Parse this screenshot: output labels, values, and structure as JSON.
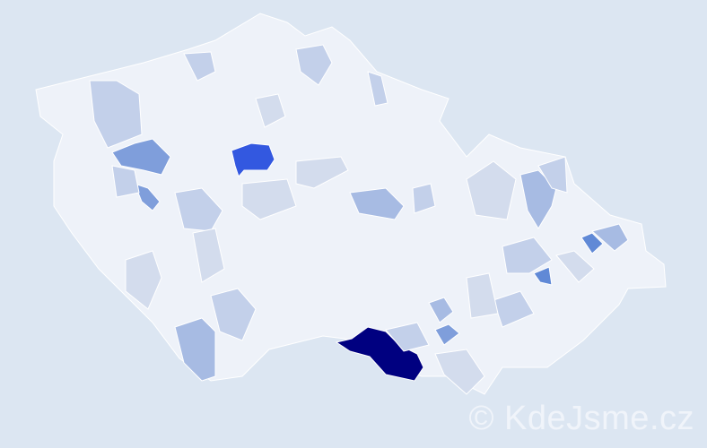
{
  "watermark": "© KdeJsme.cz",
  "colors": {
    "background": "#dce6f2",
    "base_region": "#eef2f9",
    "region_border": "#ffffff",
    "light": "#d3dced",
    "pale_blue": "#c3d0ea",
    "mid_blue": "#a7bbe3",
    "blue": "#7f9edb",
    "strong_blue": "#6089d6",
    "bright_blue": "#3358e0",
    "max": "#000080"
  },
  "legend": null
}
